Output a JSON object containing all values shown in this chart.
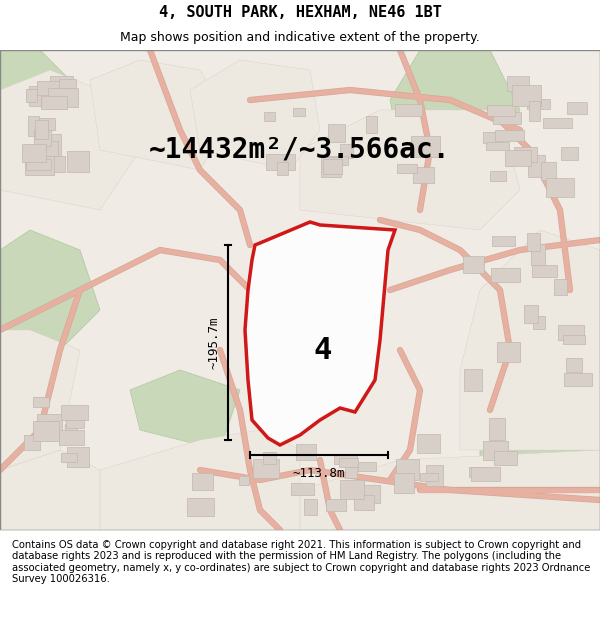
{
  "title_line1": "4, SOUTH PARK, HEXHAM, NE46 1BT",
  "title_line2": "Map shows position and indicative extent of the property.",
  "area_text": "~14432m²/~3.566ac.",
  "label_number": "4",
  "dim_height": "~195.7m",
  "dim_width": "~113.8m",
  "footer_text": "Contains OS data © Crown copyright and database right 2021. This information is subject to Crown copyright and database rights 2023 and is reproduced with the permission of HM Land Registry. The polygons (including the associated geometry, namely x, y co-ordinates) are subject to Crown copyright and database rights 2023 Ordnance Survey 100026316.",
  "title_fontsize": 11,
  "subtitle_fontsize": 9,
  "map_bg": "#f0ebe4",
  "polygon_color": "#cc0000",
  "road_color": "#e8b0a0",
  "road_outline_color": "#d4a898",
  "building_color": "#d8d0c8",
  "green_color": "#c8d8b8",
  "green_edge": "#b0c8a0",
  "built_color": "#ede8e0",
  "built_edge": "#d8d0c8"
}
